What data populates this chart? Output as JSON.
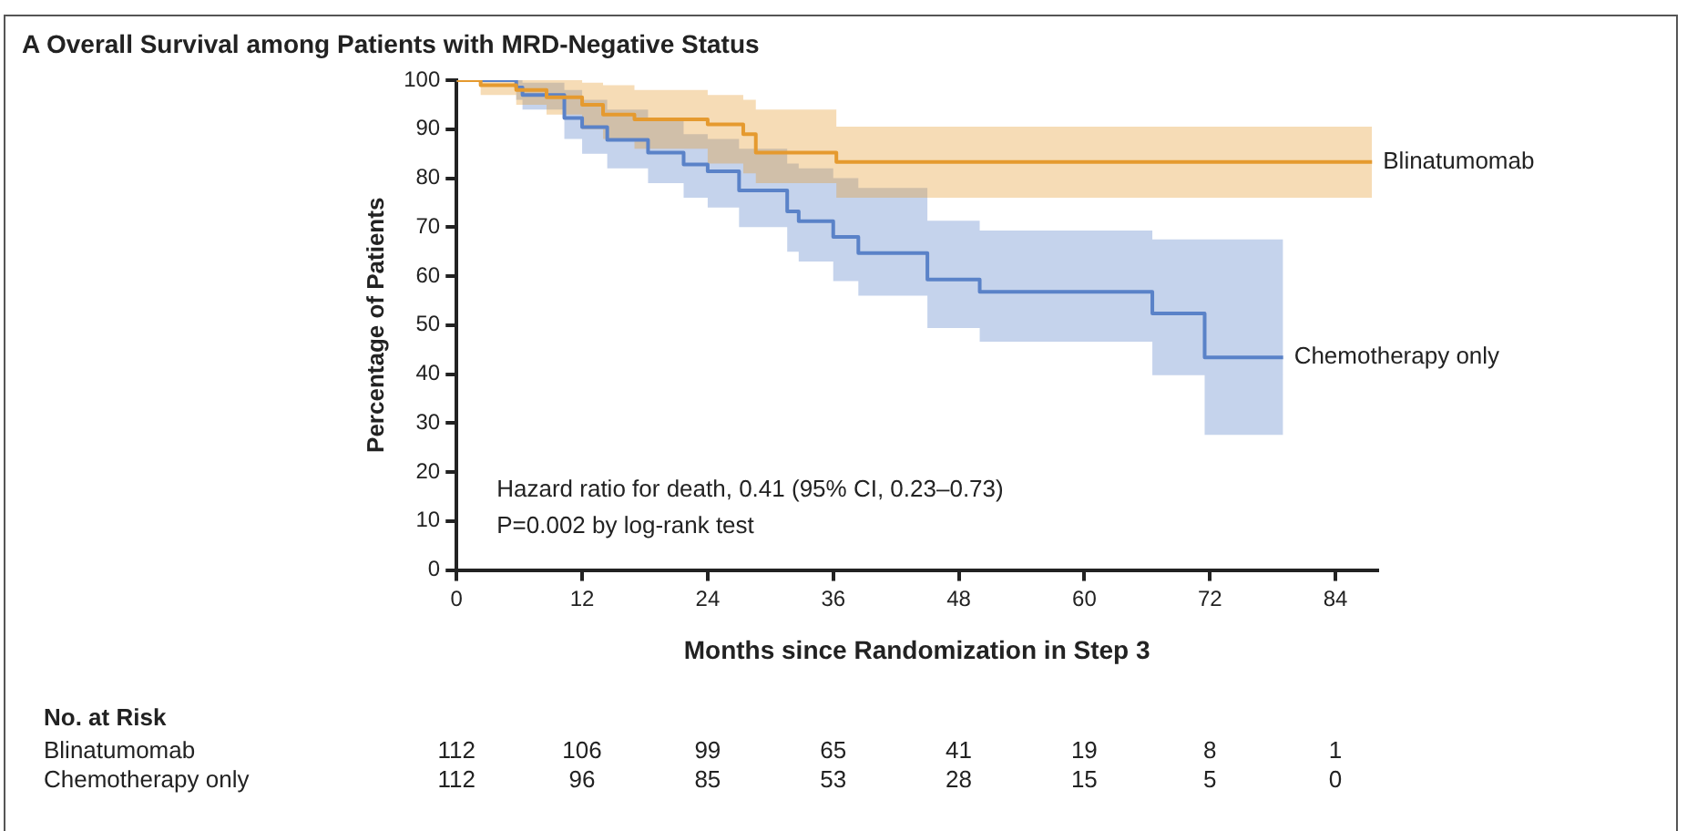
{
  "chart_data": {
    "type": "step",
    "title": "A  Overall Survival among Patients with MRD-Negative Status",
    "xlabel": "Months since Randomization in Step 3",
    "ylabel": "Percentage of Patients",
    "xlim": [
      0,
      88
    ],
    "xticks": [
      0,
      12,
      24,
      36,
      48,
      60,
      72,
      84
    ],
    "ylim": [
      0,
      100
    ],
    "yticks": [
      0,
      10,
      20,
      30,
      40,
      50,
      60,
      70,
      80,
      90,
      100
    ],
    "legend": false,
    "series": [
      {
        "name": "Blinatumomab",
        "color": "#e59a2f",
        "x": [
          0,
          2.3,
          5.7,
          8.6,
          12,
          14,
          17,
          24,
          27.4,
          28.6,
          36.3,
          87.5
        ],
        "values": [
          100,
          99,
          98,
          96.5,
          95,
          93,
          92,
          91,
          89,
          85.2,
          83.3,
          83.3
        ],
        "upper": [
          100,
          100,
          100,
          100,
          99.5,
          99,
          98,
          97,
          96,
          94,
          90.5,
          90.5
        ],
        "lower": [
          100,
          97,
          95,
          93,
          90,
          88,
          86,
          83,
          81,
          79,
          76,
          76
        ]
      },
      {
        "name": "Chemotherapy only",
        "color": "#5a82c8",
        "x": [
          0,
          5.7,
          6.3,
          10.3,
          12,
          14.4,
          18.3,
          21.7,
          24,
          27,
          31.6,
          32.7,
          36,
          38.4,
          45,
          50,
          66.5,
          71.5,
          79
        ],
        "values": [
          100,
          98.5,
          97,
          92.3,
          90.4,
          87.8,
          85.2,
          82.8,
          81.4,
          77.5,
          73.2,
          71.2,
          68,
          64.7,
          59.3,
          56.8,
          52.4,
          43.4,
          43.4
        ],
        "upper": [
          100,
          100,
          99.5,
          98,
          96,
          94,
          92,
          89,
          88,
          86,
          83,
          82,
          80,
          78,
          71.3,
          69.3,
          67.5,
          67.5,
          67.5
        ],
        "lower": [
          100,
          96,
          94,
          88,
          85,
          82,
          79,
          76,
          74,
          70,
          65,
          63,
          59,
          56,
          49.4,
          46.6,
          39.8,
          27.6,
          27.6
        ]
      }
    ],
    "annotations": [
      "Hazard ratio for death, 0.41 (95% CI, 0.23–0.73)",
      "P=0.002 by log-rank test",
      "No. at Risk",
      "Blinatumomab",
      "112",
      "106",
      "99",
      "65",
      "41",
      "19",
      "8",
      "1",
      "Chemotherapy only",
      "112",
      "96",
      "85",
      "53",
      "28",
      "15",
      "5",
      "0"
    ]
  }
}
